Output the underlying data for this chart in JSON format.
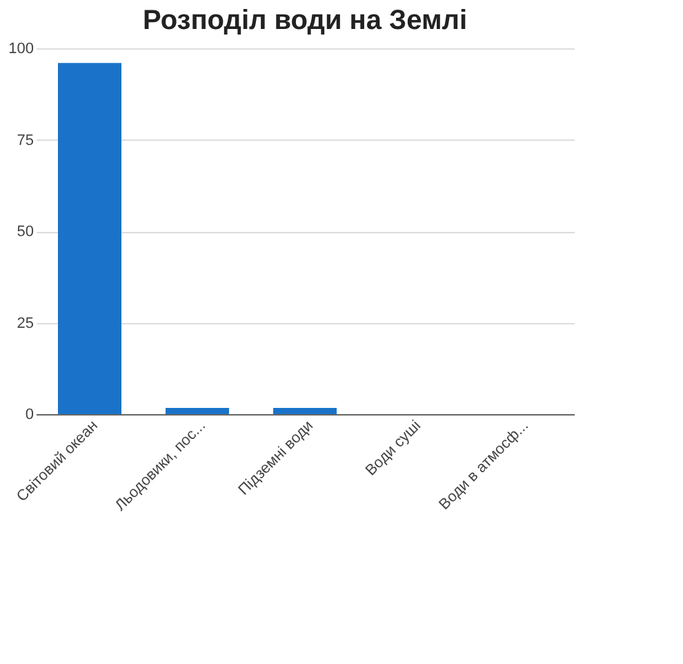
{
  "chart_data": {
    "type": "bar",
    "title": "Розподіл води на Землі",
    "categories": [
      "Світовий океан",
      "Льодовики, пос...",
      "Підземні води",
      "Води суші",
      "Води в атмосф..."
    ],
    "series": [
      {
        "color": "#1a73c8",
        "values": [
          96,
          1.7,
          1.7,
          0,
          0
        ]
      }
    ],
    "ylim": [
      0,
      100
    ],
    "yticks": [
      0,
      25,
      50,
      75,
      100
    ],
    "grid": "y"
  }
}
